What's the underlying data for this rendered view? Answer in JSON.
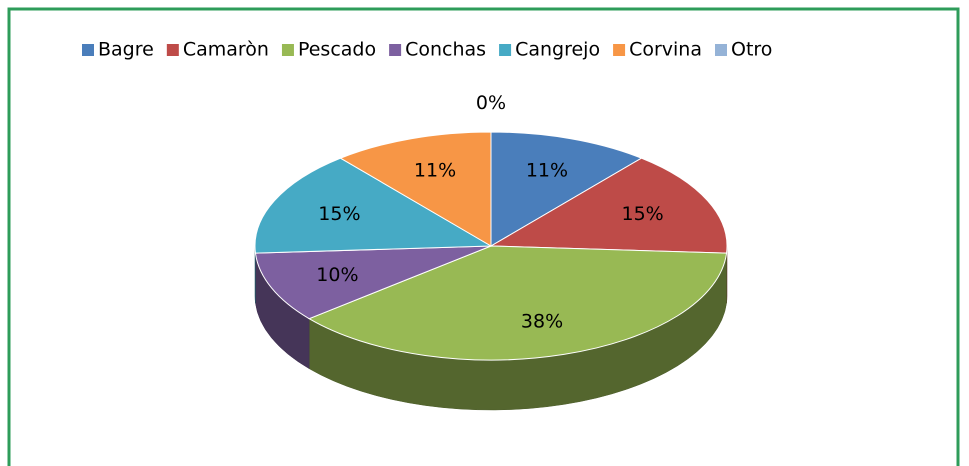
{
  "chart_data": {
    "type": "pie",
    "style": "3d",
    "categories": [
      "Bagre",
      "Camaròn",
      "Pescado",
      "Conchas",
      "Cangrejo",
      "Corvina",
      "Otro"
    ],
    "values": [
      11,
      15,
      38,
      10,
      15,
      11,
      0
    ],
    "value_labels": [
      "11%",
      "15%",
      "38%",
      "10%",
      "15%",
      "11%",
      "0%"
    ],
    "colors": [
      "#4a7ebb",
      "#be4b48",
      "#98b954",
      "#7d60a0",
      "#46aac5",
      "#f79646",
      "#95b3d7"
    ],
    "legend": "top"
  }
}
